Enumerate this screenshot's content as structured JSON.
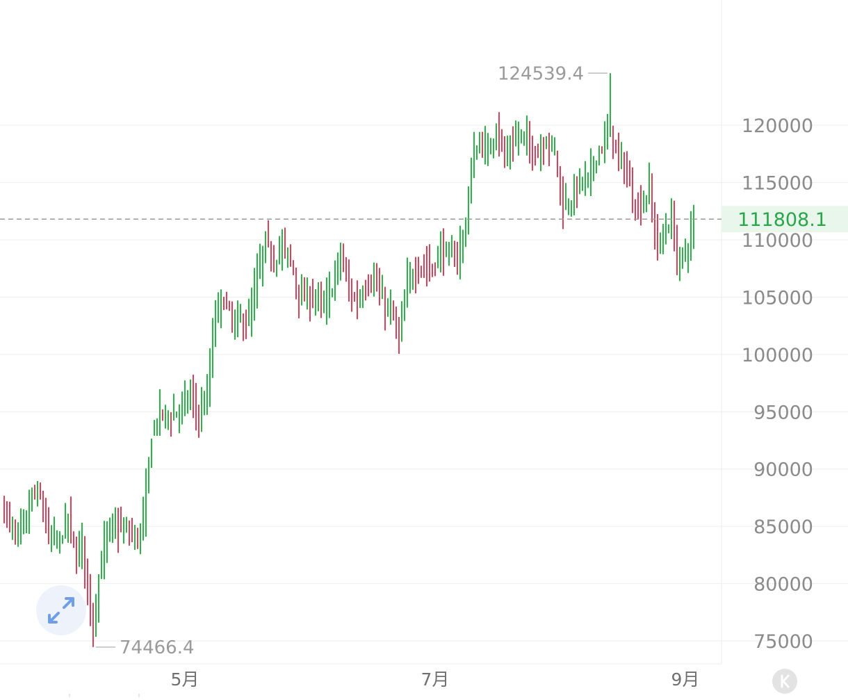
{
  "colors": {
    "up": "#2db24a",
    "down": "#d9405a",
    "grid": "#ededed",
    "current_line": "#9a9a9a",
    "current_bg": "#e8f6ec",
    "current_text": "#2aa64a",
    "axis_text": "#8a8a8a",
    "expand_icon": "#6f9ee8",
    "collapse_icon_bg": "#e3e3e3"
  },
  "icons": {
    "expand": "expand-arrows-icon",
    "collapse": "collapse-k-icon"
  },
  "chart_data": {
    "type": "bar",
    "ohlc_style": "vertical bars (high-low), green = up, red = down",
    "y_ticks": [
      {
        "value": 75000,
        "label": "75000"
      },
      {
        "value": 80000,
        "label": "80000"
      },
      {
        "value": 85000,
        "label": "85000"
      },
      {
        "value": 90000,
        "label": "90000"
      },
      {
        "value": 95000,
        "label": "95000"
      },
      {
        "value": 100000,
        "label": "100000"
      },
      {
        "value": 105000,
        "label": "105000"
      },
      {
        "value": 110000,
        "label": "110000"
      },
      {
        "value": 115000,
        "label": "115000"
      },
      {
        "value": 120000,
        "label": "120000"
      }
    ],
    "x_ticks": [
      {
        "index": 65,
        "label": "5月"
      },
      {
        "index": 155,
        "label": "7月"
      },
      {
        "index": 245,
        "label": "9月"
      }
    ],
    "x_range": [
      0,
      252
    ],
    "ylim": [
      73000,
      128500
    ],
    "grid": true,
    "high": {
      "value": 124539.4,
      "label": "124539.4",
      "index": 218
    },
    "low": {
      "value": 74466.4,
      "label": "74466.4",
      "index": 32
    },
    "current": {
      "value": 111808.1,
      "label": "111808.1"
    },
    "anchors": [
      [
        0,
        86500
      ],
      [
        4,
        84000
      ],
      [
        8,
        85500
      ],
      [
        10,
        87800
      ],
      [
        13,
        87500
      ],
      [
        16,
        84000
      ],
      [
        20,
        83800
      ],
      [
        23,
        85800
      ],
      [
        26,
        82000
      ],
      [
        28,
        84000
      ],
      [
        30,
        79500
      ],
      [
        32,
        76500
      ],
      [
        34,
        80500
      ],
      [
        37,
        84500
      ],
      [
        40,
        85000
      ],
      [
        44,
        84500
      ],
      [
        48,
        84000
      ],
      [
        50,
        85500
      ],
      [
        53,
        93000
      ],
      [
        56,
        95000
      ],
      [
        60,
        94500
      ],
      [
        64,
        95500
      ],
      [
        67,
        96500
      ],
      [
        70,
        94500
      ],
      [
        73,
        96500
      ],
      [
        76,
        103800
      ],
      [
        79,
        104800
      ],
      [
        82,
        102800
      ],
      [
        85,
        103000
      ],
      [
        88,
        102800
      ],
      [
        91,
        106800
      ],
      [
        94,
        109800
      ],
      [
        97,
        108200
      ],
      [
        100,
        109500
      ],
      [
        103,
        108200
      ],
      [
        106,
        105200
      ],
      [
        109,
        104800
      ],
      [
        112,
        105200
      ],
      [
        115,
        104000
      ],
      [
        118,
        106000
      ],
      [
        121,
        108800
      ],
      [
        124,
        105500
      ],
      [
        127,
        104500
      ],
      [
        130,
        106200
      ],
      [
        133,
        106500
      ],
      [
        136,
        104500
      ],
      [
        139,
        103800
      ],
      [
        142,
        101500
      ],
      [
        145,
        106200
      ],
      [
        148,
        107500
      ],
      [
        151,
        107800
      ],
      [
        154,
        107500
      ],
      [
        157,
        109200
      ],
      [
        160,
        108500
      ],
      [
        163,
        108500
      ],
      [
        166,
        111200
      ],
      [
        168,
        116500
      ],
      [
        171,
        118500
      ],
      [
        174,
        117500
      ],
      [
        177,
        120000
      ],
      [
        180,
        117000
      ],
      [
        183,
        118500
      ],
      [
        186,
        119200
      ],
      [
        189,
        118200
      ],
      [
        192,
        117500
      ],
      [
        195,
        118800
      ],
      [
        198,
        117800
      ],
      [
        201,
        112800
      ],
      [
        204,
        113500
      ],
      [
        207,
        115200
      ],
      [
        210,
        115200
      ],
      [
        213,
        117500
      ],
      [
        216,
        118500
      ],
      [
        218,
        120000
      ],
      [
        220,
        117500
      ],
      [
        223,
        116500
      ],
      [
        226,
        113500
      ],
      [
        229,
        112800
      ],
      [
        232,
        114500
      ],
      [
        234,
        110500
      ],
      [
        236,
        109500
      ],
      [
        238,
        111000
      ],
      [
        240,
        111800
      ],
      [
        242,
        108200
      ],
      [
        244,
        108500
      ],
      [
        246,
        109500
      ],
      [
        248,
        111808
      ]
    ]
  }
}
